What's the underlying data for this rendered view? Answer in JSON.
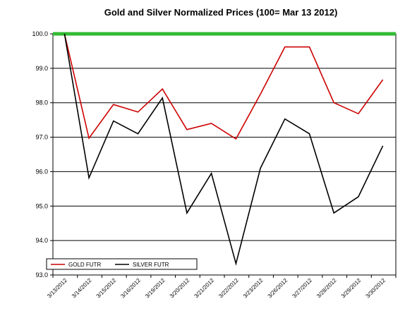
{
  "chart_data": {
    "type": "line",
    "title": "Gold and Silver Normalized Prices  (100= Mar 13 2012)",
    "xlabel": "",
    "ylabel": "",
    "categories": [
      "3/13/2012",
      "3/14/2012",
      "3/15/2012",
      "3/16/2012",
      "3/19/2012",
      "3/20/2012",
      "3/21/2012",
      "3/22/2012",
      "3/23/2012",
      "3/26/2012",
      "3/27/2012",
      "3/28/2012",
      "3/29/2012",
      "3/30/2012"
    ],
    "ylim": [
      93.0,
      100.0
    ],
    "yticks": [
      "100.0",
      "99.0",
      "98.0",
      "97.0",
      "96.0",
      "95.0",
      "94.0",
      "93.0"
    ],
    "grid": true,
    "legend_position": "bottom-left",
    "series": [
      {
        "name": "GOLD  FUTR",
        "color": "#cc0000",
        "values": [
          100.0,
          96.97,
          97.95,
          97.73,
          98.4,
          97.22,
          97.4,
          96.95,
          98.25,
          99.62,
          99.62,
          98.0,
          97.68,
          98.67
        ]
      },
      {
        "name": "SILVER  FUTR",
        "color": "#000000",
        "values": [
          100.0,
          95.82,
          97.47,
          97.1,
          98.14,
          94.8,
          95.95,
          93.33,
          96.1,
          97.53,
          97.1,
          94.8,
          95.27,
          96.75
        ]
      }
    ],
    "reference_line": {
      "value": 100.0,
      "color": "#33bb33"
    }
  }
}
